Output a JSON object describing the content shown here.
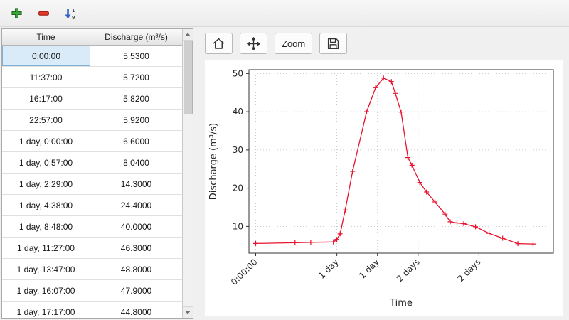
{
  "top_toolbar": {
    "buttons": [
      {
        "name": "add-row",
        "icon": "plus-icon",
        "color": "#3da33d"
      },
      {
        "name": "remove-row",
        "icon": "minus-icon",
        "color": "#e23b2e"
      },
      {
        "name": "sort-rows",
        "icon": "sort-numeric-descending-icon",
        "color": "#2f62c4"
      }
    ]
  },
  "table": {
    "columns": [
      "Time",
      "Discharge (m³/s)"
    ],
    "selected": {
      "row": 0,
      "col": 0
    },
    "rows": [
      [
        "0:00:00",
        "5.5300"
      ],
      [
        "11:37:00",
        "5.7200"
      ],
      [
        "16:17:00",
        "5.8200"
      ],
      [
        "22:57:00",
        "5.9200"
      ],
      [
        "1 day, 0:00:00",
        "6.6000"
      ],
      [
        "1 day, 0:57:00",
        "8.0400"
      ],
      [
        "1 day, 2:29:00",
        "14.3000"
      ],
      [
        "1 day, 4:38:00",
        "24.4000"
      ],
      [
        "1 day, 8:48:00",
        "40.0000"
      ],
      [
        "1 day, 11:27:00",
        "46.3000"
      ],
      [
        "1 day, 13:47:00",
        "48.8000"
      ],
      [
        "1 day, 16:07:00",
        "47.9000"
      ],
      [
        "1 day, 17:17:00",
        "44.8000"
      ]
    ]
  },
  "chart_toolbar": {
    "zoom_label": "Zoom"
  },
  "colors": {
    "selection_bg": "#d9ebf9",
    "selection_border": "#7fb2d9",
    "line": "#e8112d"
  },
  "chart_data": {
    "type": "line",
    "title": "",
    "xlabel": "Time",
    "ylabel": "Discharge (m³/s)",
    "xlim_hours": [
      -2,
      88
    ],
    "ylim": [
      3,
      51
    ],
    "yticks": [
      10,
      20,
      30,
      40,
      50
    ],
    "xticks": [
      {
        "hours": 0,
        "label": "0:00:00"
      },
      {
        "hours": 24,
        "label": "1 day"
      },
      {
        "hours": 36,
        "label": "1 day"
      },
      {
        "hours": 48,
        "label": "2 days"
      },
      {
        "hours": 66,
        "label": "2 days"
      }
    ],
    "grid": true,
    "legend": false,
    "series": [
      {
        "name": "Discharge",
        "color": "#e8112d",
        "marker": "plus",
        "points": [
          [
            0,
            5.53
          ],
          [
            11.62,
            5.72
          ],
          [
            16.28,
            5.82
          ],
          [
            22.95,
            5.92
          ],
          [
            24.0,
            6.6
          ],
          [
            24.95,
            8.04
          ],
          [
            26.48,
            14.3
          ],
          [
            28.63,
            24.4
          ],
          [
            32.8,
            40.0
          ],
          [
            35.45,
            46.3
          ],
          [
            37.78,
            48.8
          ],
          [
            40.12,
            47.9
          ],
          [
            41.28,
            44.8
          ],
          [
            43.0,
            39.9
          ],
          [
            45.0,
            28.0
          ],
          [
            46.2,
            26.0
          ],
          [
            48.5,
            21.5
          ],
          [
            50.5,
            19.0
          ],
          [
            53.0,
            16.4
          ],
          [
            56.0,
            13.2
          ],
          [
            57.5,
            11.2
          ],
          [
            59.5,
            10.9
          ],
          [
            61.5,
            10.7
          ],
          [
            65.0,
            9.9
          ],
          [
            69.0,
            8.2
          ],
          [
            73.0,
            6.9
          ],
          [
            77.5,
            5.5
          ],
          [
            82.0,
            5.4
          ]
        ]
      }
    ]
  }
}
